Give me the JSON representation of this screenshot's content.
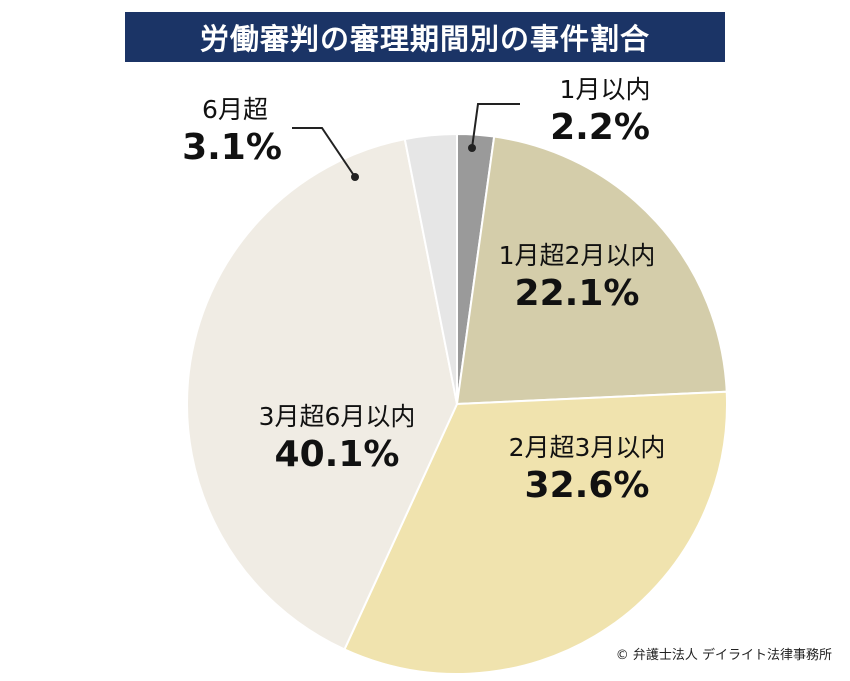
{
  "title": "労働審判の審理期間別の事件割合",
  "copyright": "© 弁護士法人 デイライト法律事務所",
  "chart_data": {
    "type": "pie",
    "title": "労働審判の審理期間別の事件割合",
    "slices": [
      {
        "label": "1月以内",
        "value": 2.2,
        "display": "2.2%",
        "color": "#9a9a9a"
      },
      {
        "label": "1月超2月以内",
        "value": 22.1,
        "display": "22.1%",
        "color": "#d4cdaa"
      },
      {
        "label": "2月超3月以内",
        "value": 32.6,
        "display": "32.6%",
        "color": "#f0e3ae"
      },
      {
        "label": "3月超6月以内",
        "value": 40.1,
        "display": "40.1%",
        "color": "#f0ece4"
      },
      {
        "label": "6月超",
        "value": 3.1,
        "display": "3.1%",
        "color": "#e6e6e6"
      }
    ]
  }
}
